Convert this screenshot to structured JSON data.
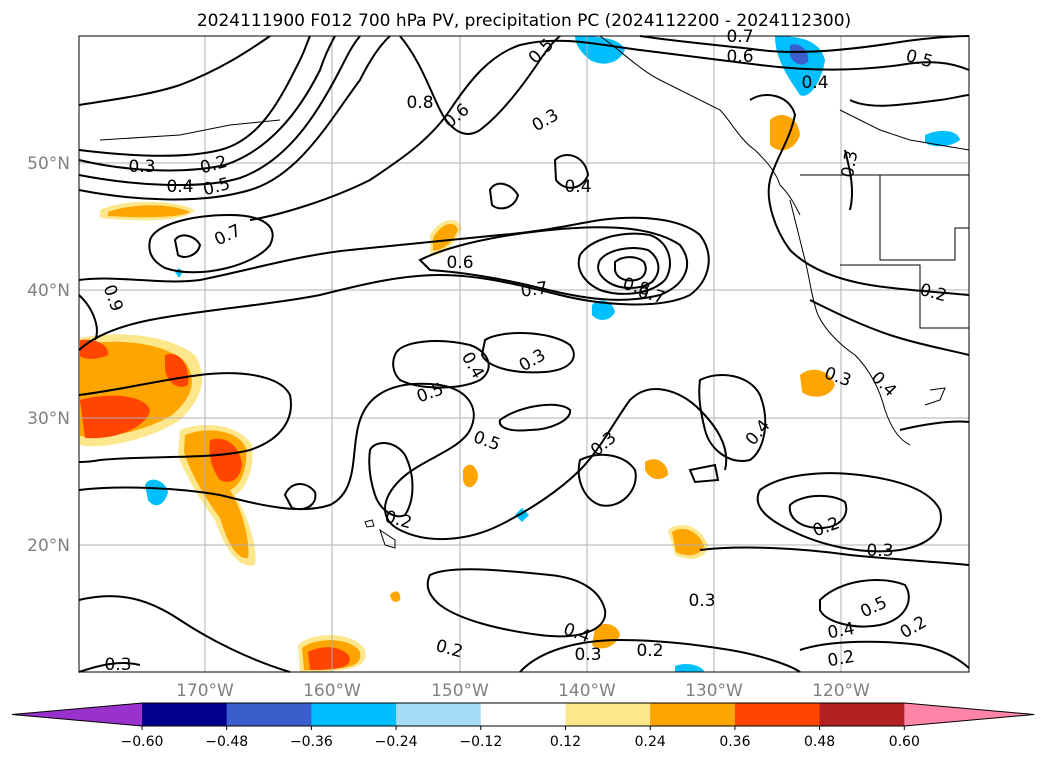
{
  "title": "2024111900 F012 700 hPa PV, precipitation PC (2024112200 - 2024112300)",
  "lat_labels": [
    "50°N",
    "40°N",
    "30°N",
    "20°N"
  ],
  "lon_labels": [
    "170°W",
    "160°W",
    "150°W",
    "140°W",
    "130°W",
    "120°W"
  ],
  "colorbar": {
    "ticks": [
      "−0.60",
      "−0.48",
      "−0.36",
      "−0.24",
      "−0.12",
      "0.12",
      "0.24",
      "0.36",
      "0.48",
      "0.60"
    ],
    "colors": [
      "#9932cc",
      "#00008b",
      "#3a5fcd",
      "#00bfff",
      "#a6dcf5",
      "#ffffff",
      "#fce78c",
      "#ffa500",
      "#ff4500",
      "#b22222",
      "#ff85a8"
    ]
  },
  "contour_labels": [
    "0.7",
    "0.6",
    "0.5",
    "0.5",
    "0.4",
    "0.8",
    "0.6",
    "0.3",
    "0.3",
    "0.2",
    "0.4",
    "0.5",
    "0.7",
    "0.4",
    "0.3",
    "0.6",
    "0.7",
    "0.8",
    "0.7",
    "0.9",
    "0.2",
    "0.3",
    "0.4",
    "0.5",
    "0.4",
    "0.5",
    "0.3",
    "0.3",
    "0.4",
    "0.2",
    "0.2",
    "0.3",
    "0.5",
    "0.4",
    "0.2",
    "0.2",
    "0.4",
    "0.3",
    "0.3",
    "0.2",
    "0.2",
    "0.3"
  ],
  "colors": {
    "contour": "#000000",
    "grid": "#b0b0b0",
    "axis_label": "#808080"
  }
}
